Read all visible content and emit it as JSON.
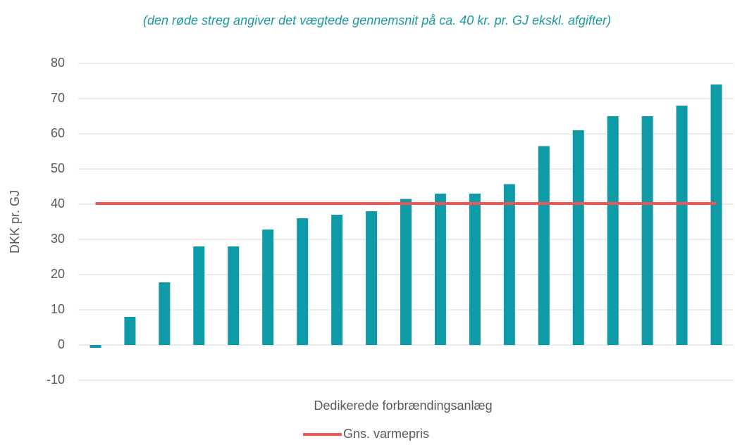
{
  "chart_data": {
    "type": "bar",
    "subtitle": "(den røde streg angiver det vægtede gennemsnit på ca. 40 kr. pr. GJ ekskl. afgifter)",
    "x_label": "Dedikerede forbrændingsanlæg",
    "y_label": "DKK pr. GJ",
    "categories": [
      null,
      null,
      null,
      null,
      null,
      null,
      null,
      null,
      null,
      null,
      null,
      null,
      null,
      null,
      null,
      null,
      null,
      null,
      null
    ],
    "series": [
      {
        "color": "#0e9aa7",
        "values": [
          -0.8,
          8,
          17.8,
          28,
          28,
          32.8,
          36,
          37,
          38,
          41.5,
          43,
          43,
          45.7,
          56.5,
          61,
          65,
          65,
          68,
          74
        ]
      },
      {
        "name": "Gns. varmepris",
        "type": "line",
        "color": "#f05454",
        "values": [
          40.2,
          40.2,
          40.2,
          40.2,
          40.2,
          40.2,
          40.2,
          40.2,
          40.2,
          40.2,
          40.2,
          40.2,
          40.2,
          40.2,
          40.2,
          40.2,
          40.2,
          40.2,
          40.2
        ]
      }
    ],
    "ylim": [
      -10,
      80
    ],
    "yticks": [
      -10,
      0,
      10,
      20,
      30,
      40,
      50,
      60,
      70,
      80
    ],
    "grid": true,
    "legend": "bottom"
  }
}
